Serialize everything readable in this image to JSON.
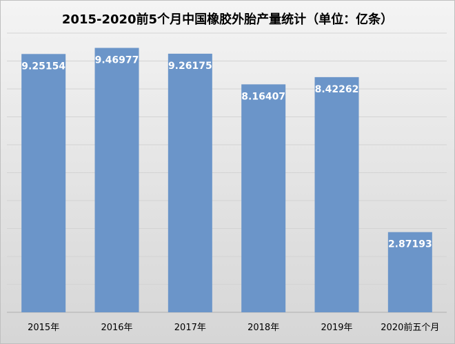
{
  "chart_data": {
    "type": "bar",
    "title": "2015-2020前5个月中国橡胶外胎产量统计（单位：亿条）",
    "categories": [
      "2015年",
      "2016年",
      "2017年",
      "2018年",
      "2019年",
      "2020前五个月"
    ],
    "values": [
      9.25154,
      9.46977,
      9.26175,
      8.16407,
      8.42262,
      2.87193
    ],
    "data_labels": [
      "9.25154",
      "9.46977",
      "9.26175",
      "8.16407",
      "8.42262",
      "2.87193"
    ],
    "ylim": [
      0,
      10
    ],
    "grid": true,
    "legend": "none",
    "bar_color": "#6b95c9",
    "label_color": "#ffffff"
  }
}
